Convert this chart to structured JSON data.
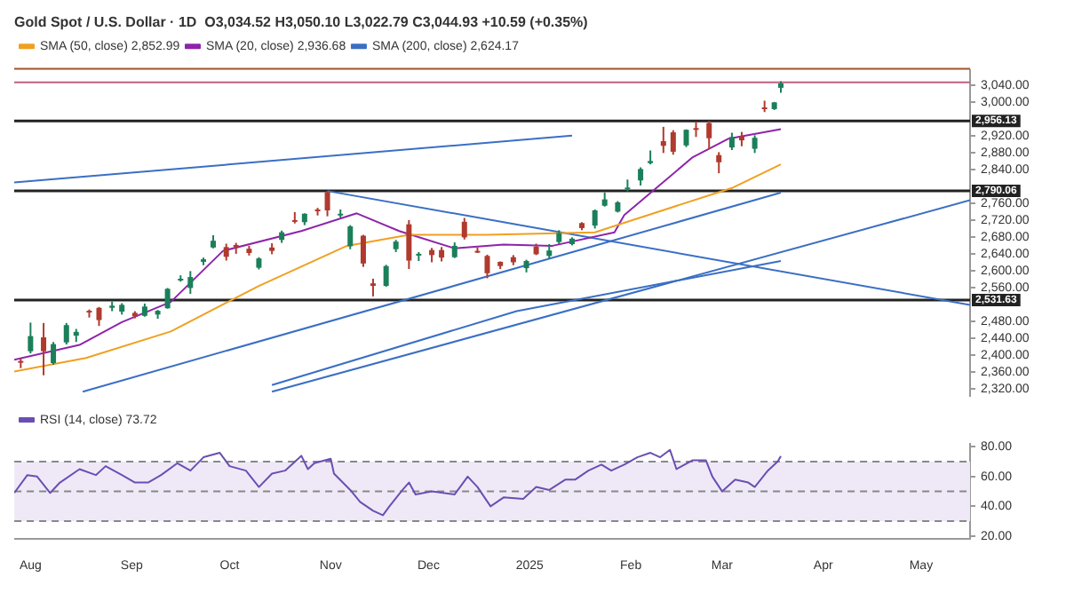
{
  "chart_data": [
    {
      "type": "candlestick",
      "title": "Gold Spot / U.S. Dollar · 1D  O3,034.52 H3,050.10 L3,022.79 C3,044.93 +10.59 (+0.35%)",
      "legend": "top left",
      "tick_labels": "y",
      "xlim": [
        "2024-07-27",
        "2025-05-16"
      ],
      "ylim": [
        2305,
        3076
      ],
      "yticks": [
        {
          "value": 2320,
          "label": "2,320.00"
        },
        {
          "value": 2360,
          "label": "2,360.00"
        },
        {
          "value": 2400,
          "label": "2,400.00"
        },
        {
          "value": 2440,
          "label": "2,440.00"
        },
        {
          "value": 2480,
          "label": "2,480.00"
        },
        {
          "value": 2560,
          "label": "2,560.00"
        },
        {
          "value": 2600,
          "label": "2,600.00"
        },
        {
          "value": 2640,
          "label": "2,640.00"
        },
        {
          "value": 2680,
          "label": "2,680.00"
        },
        {
          "value": 2720,
          "label": "2,720.00"
        },
        {
          "value": 2760,
          "label": "2,760.00"
        },
        {
          "value": 2840,
          "label": "2,840.00"
        },
        {
          "value": 2880,
          "label": "2,880.00"
        },
        {
          "value": 2920,
          "label": "2,920.00"
        },
        {
          "value": 3000,
          "label": "3,000.00"
        },
        {
          "value": 3040,
          "label": "3,040.00"
        }
      ],
      "x": [
        "2024-07-29",
        "2024-08-01",
        "2024-08-05",
        "2024-08-08",
        "2024-08-12",
        "2024-08-15",
        "2024-08-19",
        "2024-08-22",
        "2024-08-26",
        "2024-08-29",
        "2024-09-02",
        "2024-09-05",
        "2024-09-09",
        "2024-09-12",
        "2024-09-16",
        "2024-09-19",
        "2024-09-23",
        "2024-09-26",
        "2024-09-30",
        "2024-10-03",
        "2024-10-07",
        "2024-10-10",
        "2024-10-14",
        "2024-10-17",
        "2024-10-21",
        "2024-10-24",
        "2024-10-28",
        "2024-10-31",
        "2024-11-04",
        "2024-11-07",
        "2024-11-11",
        "2024-11-14",
        "2024-11-18",
        "2024-11-21",
        "2024-11-25",
        "2024-11-28",
        "2024-12-02",
        "2024-12-05",
        "2024-12-09",
        "2024-12-12",
        "2024-12-16",
        "2024-12-19",
        "2024-12-23",
        "2024-12-27",
        "2024-12-31",
        "2025-01-03",
        "2025-01-07",
        "2025-01-10",
        "2025-01-14",
        "2025-01-17",
        "2025-01-21",
        "2025-01-24",
        "2025-01-28",
        "2025-01-31",
        "2025-02-04",
        "2025-02-07",
        "2025-02-11",
        "2025-02-14",
        "2025-02-18",
        "2025-02-21",
        "2025-02-25",
        "2025-02-28",
        "2025-03-04",
        "2025-03-07",
        "2025-03-11",
        "2025-03-14",
        "2025-03-17",
        "2025-03-19"
      ],
      "ohlc": [
        [
          2387,
          2393,
          2370,
          2385
        ],
        [
          2410,
          2478,
          2405,
          2446
        ],
        [
          2443,
          2477,
          2353.08,
          2410
        ],
        [
          2382,
          2432,
          2378,
          2427
        ],
        [
          2431,
          2477,
          2426,
          2472
        ],
        [
          2447,
          2463,
          2432,
          2456
        ],
        [
          2506,
          2509,
          2490,
          2503
        ],
        [
          2513,
          2515,
          2470,
          2484
        ],
        [
          2513,
          2528,
          2505,
          2518
        ],
        [
          2504,
          2524,
          2497,
          2520
        ],
        [
          2501,
          2505,
          2488,
          2493
        ],
        [
          2494,
          2523,
          2492,
          2516
        ],
        [
          2497,
          2508,
          2487,
          2506
        ],
        [
          2512,
          2560,
          2511,
          2558
        ],
        [
          2578,
          2590,
          2575,
          2582
        ],
        [
          2560,
          2600,
          2546,
          2586
        ],
        [
          2622,
          2632,
          2614,
          2628
        ],
        [
          2656,
          2685,
          2654,
          2672
        ],
        [
          2657,
          2665,
          2625,
          2634
        ],
        [
          2662,
          2667,
          2641,
          2657
        ],
        [
          2653,
          2660,
          2637,
          2643
        ],
        [
          2608,
          2633,
          2604,
          2630
        ],
        [
          2656,
          2666,
          2640,
          2648
        ],
        [
          2674,
          2696,
          2667,
          2692
        ],
        [
          2721,
          2740,
          2713,
          2720
        ],
        [
          2716,
          2737,
          2709,
          2736
        ],
        [
          2746,
          2750,
          2732,
          2743
        ],
        [
          2787,
          2790.06,
          2730,
          2744
        ],
        [
          2736,
          2746,
          2727,
          2736
        ],
        [
          2659,
          2709,
          2652,
          2706
        ],
        [
          2684,
          2686,
          2610,
          2618
        ],
        [
          2571,
          2582,
          2540,
          2565
        ],
        [
          2565,
          2615,
          2563,
          2612
        ],
        [
          2652,
          2674,
          2645,
          2670
        ],
        [
          2711,
          2721,
          2605,
          2625
        ],
        [
          2637,
          2645,
          2624,
          2641
        ],
        [
          2650,
          2655,
          2621,
          2638
        ],
        [
          2650,
          2657,
          2623,
          2632
        ],
        [
          2633,
          2668,
          2631,
          2660
        ],
        [
          2717,
          2726,
          2675,
          2680
        ],
        [
          2648,
          2656,
          2643,
          2646
        ],
        [
          2636,
          2639,
          2583,
          2595
        ],
        [
          2622,
          2623,
          2605,
          2612
        ],
        [
          2633,
          2638,
          2614,
          2621
        ],
        [
          2607,
          2627,
          2597,
          2624
        ],
        [
          2658,
          2665,
          2638,
          2640
        ],
        [
          2636,
          2664,
          2630,
          2649
        ],
        [
          2669,
          2697,
          2664,
          2690
        ],
        [
          2664,
          2680,
          2661,
          2677
        ],
        [
          2714,
          2716,
          2697,
          2702
        ],
        [
          2708,
          2746,
          2701,
          2744
        ],
        [
          2755,
          2786,
          2753,
          2770
        ],
        [
          2741,
          2766,
          2739,
          2763
        ],
        [
          2795,
          2817,
          2789,
          2798
        ],
        [
          2815,
          2846,
          2803,
          2842
        ],
        [
          2856,
          2886,
          2853,
          2861
        ],
        [
          2908,
          2942,
          2880,
          2897
        ],
        [
          2929,
          2934,
          2876,
          2883
        ],
        [
          2898,
          2936,
          2894,
          2935
        ],
        [
          2939,
          2954,
          2918,
          2935
        ],
        [
          2951,
          2956.13,
          2889,
          2915
        ],
        [
          2875,
          2882,
          2832,
          2858
        ],
        [
          2893,
          2928,
          2887,
          2918
        ],
        [
          2920,
          2930,
          2896,
          2910
        ],
        [
          2890,
          2922,
          2880,
          2916
        ],
        [
          2988,
          3004,
          2977,
          2984
        ],
        [
          2984,
          3001,
          2982,
          3000
        ],
        [
          3034.52,
          3050.1,
          3022.79,
          3044.93
        ]
      ],
      "colors": [
        "#b03a2e",
        "#1b7f5a",
        "#b03a2e",
        "#1b7f5a",
        "#1b7f5a",
        "#1b7f5a",
        "#b03a2e",
        "#b03a2e",
        "#1b7f5a",
        "#1b7f5a",
        "#b03a2e",
        "#1b7f5a",
        "#1b7f5a",
        "#1b7f5a",
        "#1b7f5a",
        "#1b7f5a",
        "#1b7f5a",
        "#1b7f5a",
        "#b03a2e",
        "#b03a2e",
        "#b03a2e",
        "#1b7f5a",
        "#b03a2e",
        "#1b7f5a",
        "#b03a2e",
        "#1b7f5a",
        "#b03a2e",
        "#b03a2e",
        "#1b7f5a",
        "#1b7f5a",
        "#b03a2e",
        "#b03a2e",
        "#1b7f5a",
        "#1b7f5a",
        "#b03a2e",
        "#1b7f5a",
        "#b03a2e",
        "#b03a2e",
        "#1b7f5a",
        "#b03a2e",
        "#b03a2e",
        "#b03a2e",
        "#b03a2e",
        "#b03a2e",
        "#1b7f5a",
        "#b03a2e",
        "#1b7f5a",
        "#1b7f5a",
        "#1b7f5a",
        "#b03a2e",
        "#1b7f5a",
        "#1b7f5a",
        "#1b7f5a",
        "#1b7f5a",
        "#1b7f5a",
        "#1b7f5a",
        "#b03a2e",
        "#b03a2e",
        "#1b7f5a",
        "#b03a2e",
        "#b03a2e",
        "#b03a2e",
        "#1b7f5a",
        "#b03a2e",
        "#1b7f5a",
        "#b03a2e",
        "#1b7f5a",
        "#1b7f5a"
      ],
      "marker": "none",
      "series": [
        {
          "type": "line",
          "name": "SMA (50, close) 2,852.99",
          "color": "#f0a020",
          "x": [
            "2024-07-27",
            "2024-08-18",
            "2024-09-13",
            "2024-10-10",
            "2024-11-06",
            "2024-11-25",
            "2024-12-19",
            "2025-01-21",
            "2025-03-04",
            "2025-03-19"
          ],
          "values": [
            2362,
            2394,
            2457,
            2565,
            2660,
            2686,
            2686,
            2692,
            2797,
            2852.99
          ]
        },
        {
          "type": "line",
          "name": "SMA (20, close) 2,936.68",
          "color": "#8e24aa",
          "x": [
            "2024-07-27",
            "2024-08-16",
            "2024-08-29",
            "2024-09-13",
            "2024-09-29",
            "2024-10-23",
            "2024-11-09",
            "2024-11-22",
            "2024-12-09",
            "2024-12-24",
            "2025-01-08",
            "2025-01-27",
            "2025-01-30",
            "2025-02-20",
            "2025-03-03",
            "2025-03-19"
          ],
          "values": [
            2390,
            2425,
            2479,
            2527,
            2648,
            2695,
            2737,
            2695,
            2654,
            2663,
            2660,
            2692,
            2733,
            2870,
            2914,
            2936.68
          ]
        },
        {
          "type": "line",
          "name": "SMA (200, close) 2,624.17",
          "color": "#3a6fc4",
          "x": [
            "2024-10-14",
            "2024-12-28",
            "2025-03-19"
          ],
          "values": [
            2330,
            2505,
            2624.17
          ]
        },
        {
          "type": "line",
          "color": "#3a6fc4",
          "x": [
            "2024-07-27",
            "2025-01-14"
          ],
          "values": [
            2810,
            2921
          ]
        },
        {
          "type": "line",
          "color": "#3a6fc4",
          "x": [
            "2024-10-31",
            "2025-05-16"
          ],
          "values": [
            2790,
            2520
          ]
        },
        {
          "type": "line",
          "color": "#3a6fc4",
          "x": [
            "2024-08-17",
            "2025-03-19"
          ],
          "values": [
            2314,
            2786
          ]
        },
        {
          "type": "line",
          "color": "#3a6fc4",
          "x": [
            "2024-10-14",
            "2025-05-16"
          ],
          "values": [
            2314,
            2768
          ]
        }
      ],
      "ref_lines": [
        {
          "axis": "y",
          "value": 2956.13,
          "label": "2,956.13",
          "color": "#222222"
        },
        {
          "axis": "y",
          "value": 2790.06,
          "label": "2,790.06",
          "color": "#222222"
        },
        {
          "axis": "y",
          "value": 2531.63,
          "label": "2,531.63",
          "color": "#222222"
        },
        {
          "axis": "y",
          "value": 3079.47,
          "color": "#a0522d"
        },
        {
          "axis": "y",
          "value": 3047.53,
          "color": "#c06080"
        }
      ]
    },
    {
      "type": "line",
      "legend": "top left",
      "marker": "none",
      "xlim": [
        "2024-07-27",
        "2025-05-16"
      ],
      "xticks": [
        {
          "value": "2024-08-01",
          "label": "Aug"
        },
        {
          "value": "2024-09-01",
          "label": "Sep"
        },
        {
          "value": "2024-10-01",
          "label": "Oct"
        },
        {
          "value": "2024-11-01",
          "label": "Nov"
        },
        {
          "value": "2024-12-01",
          "label": "Dec"
        },
        {
          "value": "2025-01-01",
          "label": "2025"
        },
        {
          "value": "2025-02-01",
          "label": "Feb"
        },
        {
          "value": "2025-03-01",
          "label": "Mar"
        },
        {
          "value": "2025-04-01",
          "label": "Apr"
        },
        {
          "value": "2025-05-01",
          "label": "May"
        }
      ],
      "ylim": [
        18,
        82
      ],
      "yticks": [
        {
          "value": 20,
          "label": "20.00"
        },
        {
          "value": 40,
          "label": "40.00"
        },
        {
          "value": 60,
          "label": "60.00"
        },
        {
          "value": 80,
          "label": "80.00"
        }
      ],
      "series": [
        {
          "name": "RSI (14, close) 73.72",
          "color": "#6a4fb3",
          "x": [
            "2024-07-27",
            "2024-07-31",
            "2024-08-03",
            "2024-08-07",
            "2024-08-10",
            "2024-08-16",
            "2024-08-21",
            "2024-08-24",
            "2024-08-29",
            "2024-09-02",
            "2024-09-06",
            "2024-09-10",
            "2024-09-15",
            "2024-09-19",
            "2024-09-23",
            "2024-09-28",
            "2024-10-01",
            "2024-10-06",
            "2024-10-10",
            "2024-10-14",
            "2024-10-18",
            "2024-10-23",
            "2024-10-25",
            "2024-10-27",
            "2024-11-01",
            "2024-11-02",
            "2024-11-07",
            "2024-11-10",
            "2024-11-14",
            "2024-11-17",
            "2024-11-19",
            "2024-11-23",
            "2024-11-25",
            "2024-11-27",
            "2024-12-02",
            "2024-12-09",
            "2024-12-13",
            "2024-12-16",
            "2024-12-20",
            "2024-12-24",
            "2024-12-30",
            "2025-01-03",
            "2025-01-07",
            "2025-01-12",
            "2025-01-15",
            "2025-01-19",
            "2025-01-23",
            "2025-01-26",
            "2025-01-30",
            "2025-02-03",
            "2025-02-07",
            "2025-02-10",
            "2025-02-13",
            "2025-02-15",
            "2025-02-20",
            "2025-02-24",
            "2025-02-26",
            "2025-03-01",
            "2025-03-05",
            "2025-03-09",
            "2025-03-11",
            "2025-03-15",
            "2025-03-18",
            "2025-03-19"
          ],
          "values": [
            49,
            61,
            60,
            49,
            56,
            65,
            61,
            67,
            61,
            56,
            56,
            61,
            69,
            64,
            73,
            76,
            67,
            64,
            53,
            62,
            64,
            74,
            65,
            69,
            72,
            62,
            51,
            43,
            37,
            34,
            40,
            51,
            56,
            48,
            50,
            48,
            60,
            53,
            40,
            46,
            45,
            53,
            51,
            58,
            58,
            64,
            68,
            64,
            68,
            73,
            76,
            73,
            78,
            65,
            71,
            71,
            60,
            50,
            58,
            56,
            53,
            64,
            70,
            73.72
          ]
        }
      ],
      "ref_lines": [
        {
          "axis": "y",
          "value": 70,
          "color": "#888888",
          "line_style": "dashed"
        },
        {
          "axis": "y",
          "value": 50,
          "color": "#888888",
          "line_style": "dashed"
        },
        {
          "axis": "y",
          "value": 30,
          "color": "#888888",
          "line_style": "dashed"
        }
      ],
      "bands": [
        {
          "axis": "y",
          "from": 30,
          "to": 70,
          "color": "#efe9f7"
        }
      ]
    }
  ]
}
